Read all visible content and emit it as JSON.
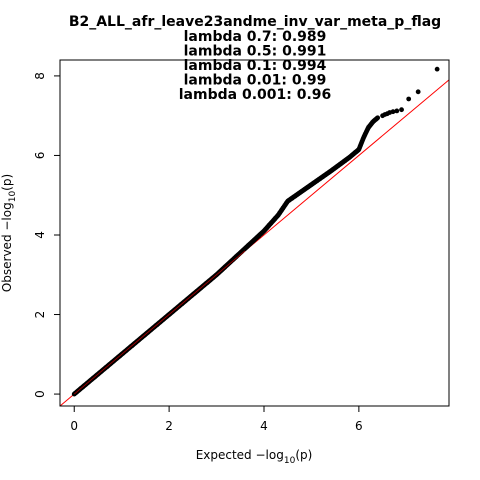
{
  "chart_data": {
    "type": "scatter",
    "title": "B2_ALL_afr_leave23andme_inv_var_meta_p_flag",
    "subtitle_lines": [
      "lambda 0.7: 0.989",
      "lambda 0.5: 0.991",
      "lambda 0.1: 0.994",
      "lambda 0.01: 0.99",
      "lambda 0.001: 0.96"
    ],
    "xlabel": {
      "prefix": "Expected  ",
      "minus_log": "−log",
      "sub": "10",
      "arg": "(p)"
    },
    "ylabel": {
      "prefix": "Observed  ",
      "minus_log": "−log",
      "sub": "10",
      "arg": "(p)"
    },
    "xlim": [
      -0.3,
      7.9
    ],
    "ylim": [
      -0.3,
      8.4
    ],
    "x_ticks": [
      "0",
      "2",
      "4",
      "6"
    ],
    "y_ticks": [
      "0",
      "2",
      "4",
      "6",
      "8"
    ],
    "grid": false,
    "colors": {
      "points": "#000000",
      "reference_line": "#ff0000",
      "reference_line_overlay": "#cc0000",
      "axes": "#000000"
    },
    "reference_line": {
      "slope": 1,
      "intercept": 0
    },
    "curve": [
      [
        0.0,
        0.0
      ],
      [
        1.0,
        1.0
      ],
      [
        2.0,
        2.0
      ],
      [
        3.0,
        3.0
      ],
      [
        3.5,
        3.55
      ],
      [
        4.0,
        4.1
      ],
      [
        4.3,
        4.5
      ],
      [
        4.5,
        4.85
      ],
      [
        4.8,
        5.1
      ],
      [
        5.1,
        5.35
      ],
      [
        5.4,
        5.6
      ],
      [
        5.8,
        5.95
      ],
      [
        6.0,
        6.15
      ],
      [
        6.1,
        6.45
      ],
      [
        6.2,
        6.7
      ],
      [
        6.3,
        6.85
      ],
      [
        6.4,
        6.95
      ]
    ],
    "tail_points": [
      [
        6.5,
        7.0
      ],
      [
        6.55,
        7.03
      ],
      [
        6.6,
        7.05
      ],
      [
        6.65,
        7.08
      ],
      [
        6.72,
        7.1
      ],
      [
        6.8,
        7.12
      ],
      [
        6.9,
        7.15
      ],
      [
        7.05,
        7.42
      ],
      [
        7.25,
        7.6
      ],
      [
        7.65,
        8.17
      ]
    ]
  }
}
